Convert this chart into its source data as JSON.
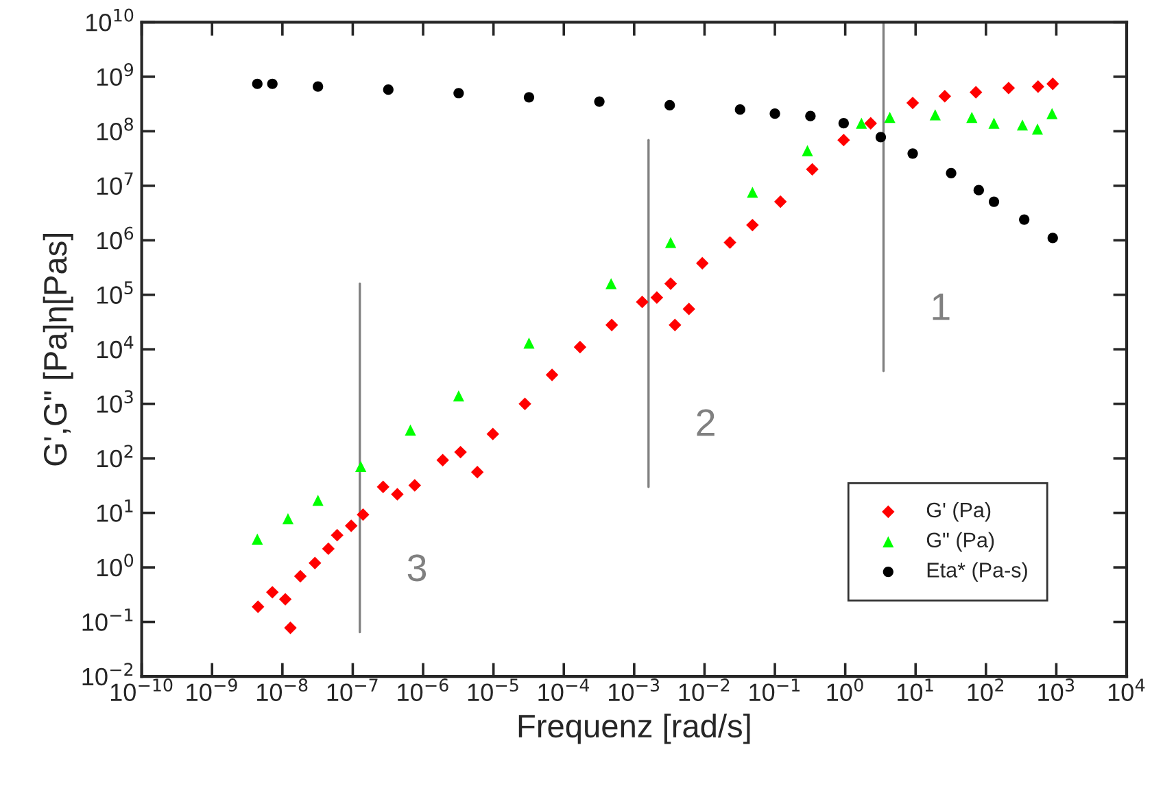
{
  "chart_data": {
    "type": "scatter",
    "xlabel": "Frequenz [rad/s]",
    "ylabel": "G',G\" [Pa]η[Pas]",
    "log": "xy",
    "grid": false,
    "legend": "bottom right",
    "xlim": [
      1e-10,
      10000.0
    ],
    "ylim": [
      0.01,
      10000000000.0
    ],
    "xticks": [
      {
        "value": 1e-10,
        "label": "10$^{−10}$"
      },
      {
        "value": 1e-09,
        "label": "10$^{−9}$"
      },
      {
        "value": 1e-08,
        "label": "10$^{−8}$"
      },
      {
        "value": 1e-07,
        "label": "10$^{−7}$"
      },
      {
        "value": 1e-06,
        "label": "10$^{−6}$"
      },
      {
        "value": 1e-05,
        "label": "10$^{−5}$"
      },
      {
        "value": 0.0001,
        "label": "10$^{−4}$"
      },
      {
        "value": 0.001,
        "label": "10$^{−3}$"
      },
      {
        "value": 0.01,
        "label": "10$^{−2}$"
      },
      {
        "value": 0.1,
        "label": "10$^{−1}$"
      },
      {
        "value": 1,
        "label": "10$^{0}$"
      },
      {
        "value": 10,
        "label": "10$^{1}$"
      },
      {
        "value": 100,
        "label": "10$^{2}$"
      },
      {
        "value": 1000,
        "label": "10$^{3}$"
      },
      {
        "value": 10000,
        "label": "10$^{4}$"
      }
    ],
    "yticks": [
      {
        "value": 0.01,
        "label": "10$^{−2}$"
      },
      {
        "value": 0.1,
        "label": "10$^{−1}$"
      },
      {
        "value": 1,
        "label": "10$^{0}$"
      },
      {
        "value": 10,
        "label": "10$^{1}$"
      },
      {
        "value": 100,
        "label": "10$^{2}$"
      },
      {
        "value": 1000,
        "label": "10$^{3}$"
      },
      {
        "value": 10000.0,
        "label": "10$^{4}$"
      },
      {
        "value": 100000.0,
        "label": "10$^{5}$"
      },
      {
        "value": 1000000.0,
        "label": "10$^{6}$"
      },
      {
        "value": 10000000.0,
        "label": "10$^{7}$"
      },
      {
        "value": 100000000.0,
        "label": "10$^{8}$"
      },
      {
        "value": 1000000000.0,
        "label": "10$^{9}$"
      },
      {
        "value": 10000000000.0,
        "label": "10$^{10}$"
      }
    ],
    "series": [
      {
        "name": "G' (Pa)",
        "color": "#ff0000",
        "marker": "diamond",
        "x": [
          4.5e-09,
          7.2e-09,
          1.1e-08,
          1.3e-08,
          1.8e-08,
          2.9e-08,
          4.5e-08,
          6e-08,
          9.5e-08,
          1.4e-07,
          2.7e-07,
          4.3e-07,
          7.6e-07,
          1.9e-06,
          3.4e-06,
          5.9e-06,
          9.8e-06,
          2.8e-05,
          6.8e-05,
          0.00017,
          0.00048,
          0.0013,
          0.0021,
          0.0033,
          0.0038,
          0.006,
          0.0093,
          0.023,
          0.048,
          0.12,
          0.34,
          0.95,
          2.3,
          9.1,
          26,
          72,
          210,
          550,
          890
        ],
        "values": [
          0.19,
          0.35,
          0.26,
          0.078,
          0.69,
          1.2,
          2.2,
          3.9,
          5.8,
          9.3,
          30,
          22,
          32,
          93,
          130,
          56,
          280,
          1000,
          3400,
          11000.0,
          28000.0,
          74000.0,
          89000.0,
          160000.0,
          28000.0,
          55000.0,
          380000.0,
          910000.0,
          1900000.0,
          5100000.0,
          20000000.0,
          69000000.0,
          140000000.0,
          330000000.0,
          440000000.0,
          520000000.0,
          620000000.0,
          660000000.0,
          740000000.0
        ]
      },
      {
        "name": "G\" (Pa)",
        "color": "#00ff00",
        "marker": "triangle",
        "x": [
          4.4e-09,
          1.2e-08,
          3.2e-08,
          1.3e-07,
          6.6e-07,
          3.2e-06,
          3.2e-05,
          0.00047,
          0.0033,
          0.048,
          0.29,
          1.7,
          4.3,
          19,
          63,
          130,
          330,
          540,
          870
        ],
        "values": [
          3.3,
          7.8,
          17,
          71,
          330,
          1400,
          13000.0,
          160000.0,
          910000.0,
          7600000.0,
          44000000.0,
          140000000.0,
          180000000.0,
          200000000.0,
          180000000.0,
          140000000.0,
          130000000.0,
          110000000.0,
          210000000.0
        ]
      },
      {
        "name": "Eta* (Pa-s)",
        "color": "#000000",
        "marker": "circle",
        "x": [
          4.4e-09,
          7.2e-09,
          3.2e-08,
          3.2e-07,
          3.2e-06,
          3.2e-05,
          0.00032,
          0.0032,
          0.032,
          0.1,
          0.32,
          0.95,
          3.2,
          9.1,
          32,
          79,
          130,
          350,
          890
        ],
        "values": [
          740000000.0,
          740000000.0,
          660000000.0,
          580000000.0,
          500000000.0,
          420000000.0,
          350000000.0,
          300000000.0,
          250000000.0,
          210000000.0,
          190000000.0,
          140000000.0,
          78000000.0,
          39000000.0,
          17000000.0,
          8300000.0,
          5100000.0,
          2400000.0,
          1100000.0
        ]
      },
      {
        "type": "line",
        "color": "#808080",
        "marker": "none",
        "x": [
          3.5,
          3.5
        ],
        "values": [
          10000000000.0,
          4000
        ]
      },
      {
        "type": "line",
        "color": "#808080",
        "marker": "none",
        "x": [
          0.0016,
          0.0016
        ],
        "values": [
          69000000.0,
          30
        ]
      },
      {
        "type": "line",
        "color": "#808080",
        "marker": "none",
        "x": [
          1.26e-07,
          1.26e-07
        ],
        "values": [
          160000.0,
          0.065
        ]
      }
    ],
    "annotations": [
      "1",
      "2",
      "3"
    ]
  }
}
